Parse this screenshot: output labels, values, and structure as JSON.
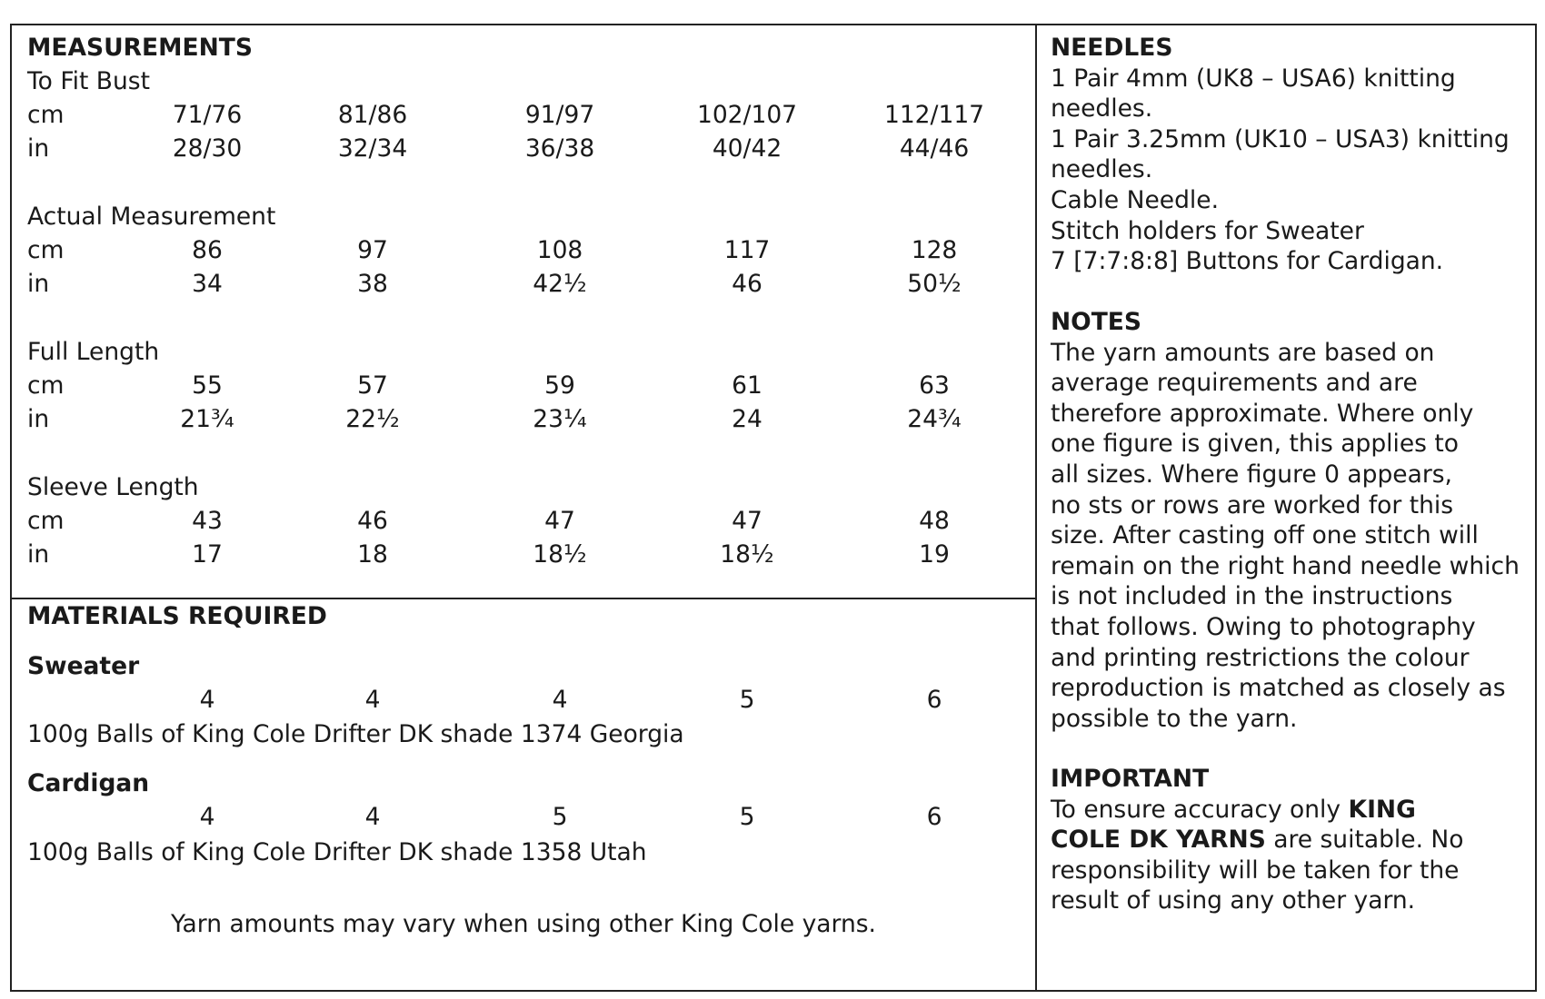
{
  "measurements": {
    "heading": "MEASUREMENTS",
    "to_fit_bust": {
      "label": "To Fit Bust",
      "cm": [
        "cm",
        "71/76",
        "81/86",
        "91/97",
        "102/107",
        "112/117"
      ],
      "in": [
        "in",
        "28/30",
        "32/34",
        "36/38",
        "40/42",
        "44/46"
      ]
    },
    "actual": {
      "label": "Actual Measurement",
      "cm": [
        "cm",
        "86",
        "97",
        "108",
        "117",
        "128"
      ],
      "in": [
        "in",
        "34",
        "38",
        "42½",
        "46",
        "50½"
      ]
    },
    "full_length": {
      "label": "Full Length",
      "cm": [
        "cm",
        "55",
        "57",
        "59",
        "61",
        "63"
      ],
      "in": [
        "in",
        "21¾",
        "22½",
        "23¼",
        "24",
        "24¾"
      ]
    },
    "sleeve_length": {
      "label": "Sleeve Length",
      "cm": [
        "cm",
        "43",
        "46",
        "47",
        "47",
        "48"
      ],
      "in": [
        "in",
        "17",
        "18",
        "18½",
        "18½",
        "19"
      ]
    }
  },
  "materials": {
    "heading": "MATERIALS REQUIRED",
    "sweater": {
      "label": "Sweater",
      "amounts": [
        "4",
        "4",
        "4",
        "5",
        "6"
      ],
      "description": "100g Balls of King Cole Drifter DK shade 1374 Georgia"
    },
    "cardigan": {
      "label": "Cardigan",
      "amounts": [
        "4",
        "4",
        "5",
        "5",
        "6"
      ],
      "description": "100g Balls of King Cole Drifter DK shade 1358 Utah"
    },
    "note": "Yarn amounts may vary when using other King Cole yarns."
  },
  "needles": {
    "heading": "NEEDLES",
    "lines": [
      "1 Pair 4mm (UK8 – USA6) knitting",
      "needles.",
      "1 Pair 3.25mm (UK10 – USA3) knitting",
      "needles.",
      "Cable Needle.",
      "Stitch holders for Sweater",
      "7 [7:7:8:8] Buttons for Cardigan."
    ]
  },
  "notes": {
    "heading": "NOTES",
    "lines": [
      "The yarn amounts are based on",
      "average requirements and are",
      "therefore approximate. Where only",
      "one figure is given, this applies to",
      "all sizes. Where figure 0 appears,",
      "no sts or rows are worked for this",
      "size.  After casting off one stitch will",
      "remain on the right hand needle which",
      "is not included in the instructions",
      "that follows. Owing to photography",
      "and printing restrictions the colour",
      "reproduction is matched as closely as",
      "possible to the yarn."
    ]
  },
  "important": {
    "heading": "IMPORTANT",
    "line1_pre": "To ensure accuracy only ",
    "line1_bold": "KING",
    "line2_bold": "COLE DK YARNS",
    "line2_post": " are suitable. No",
    "line3": "responsibility will be taken for the",
    "line4": "result of using any other yarn."
  }
}
